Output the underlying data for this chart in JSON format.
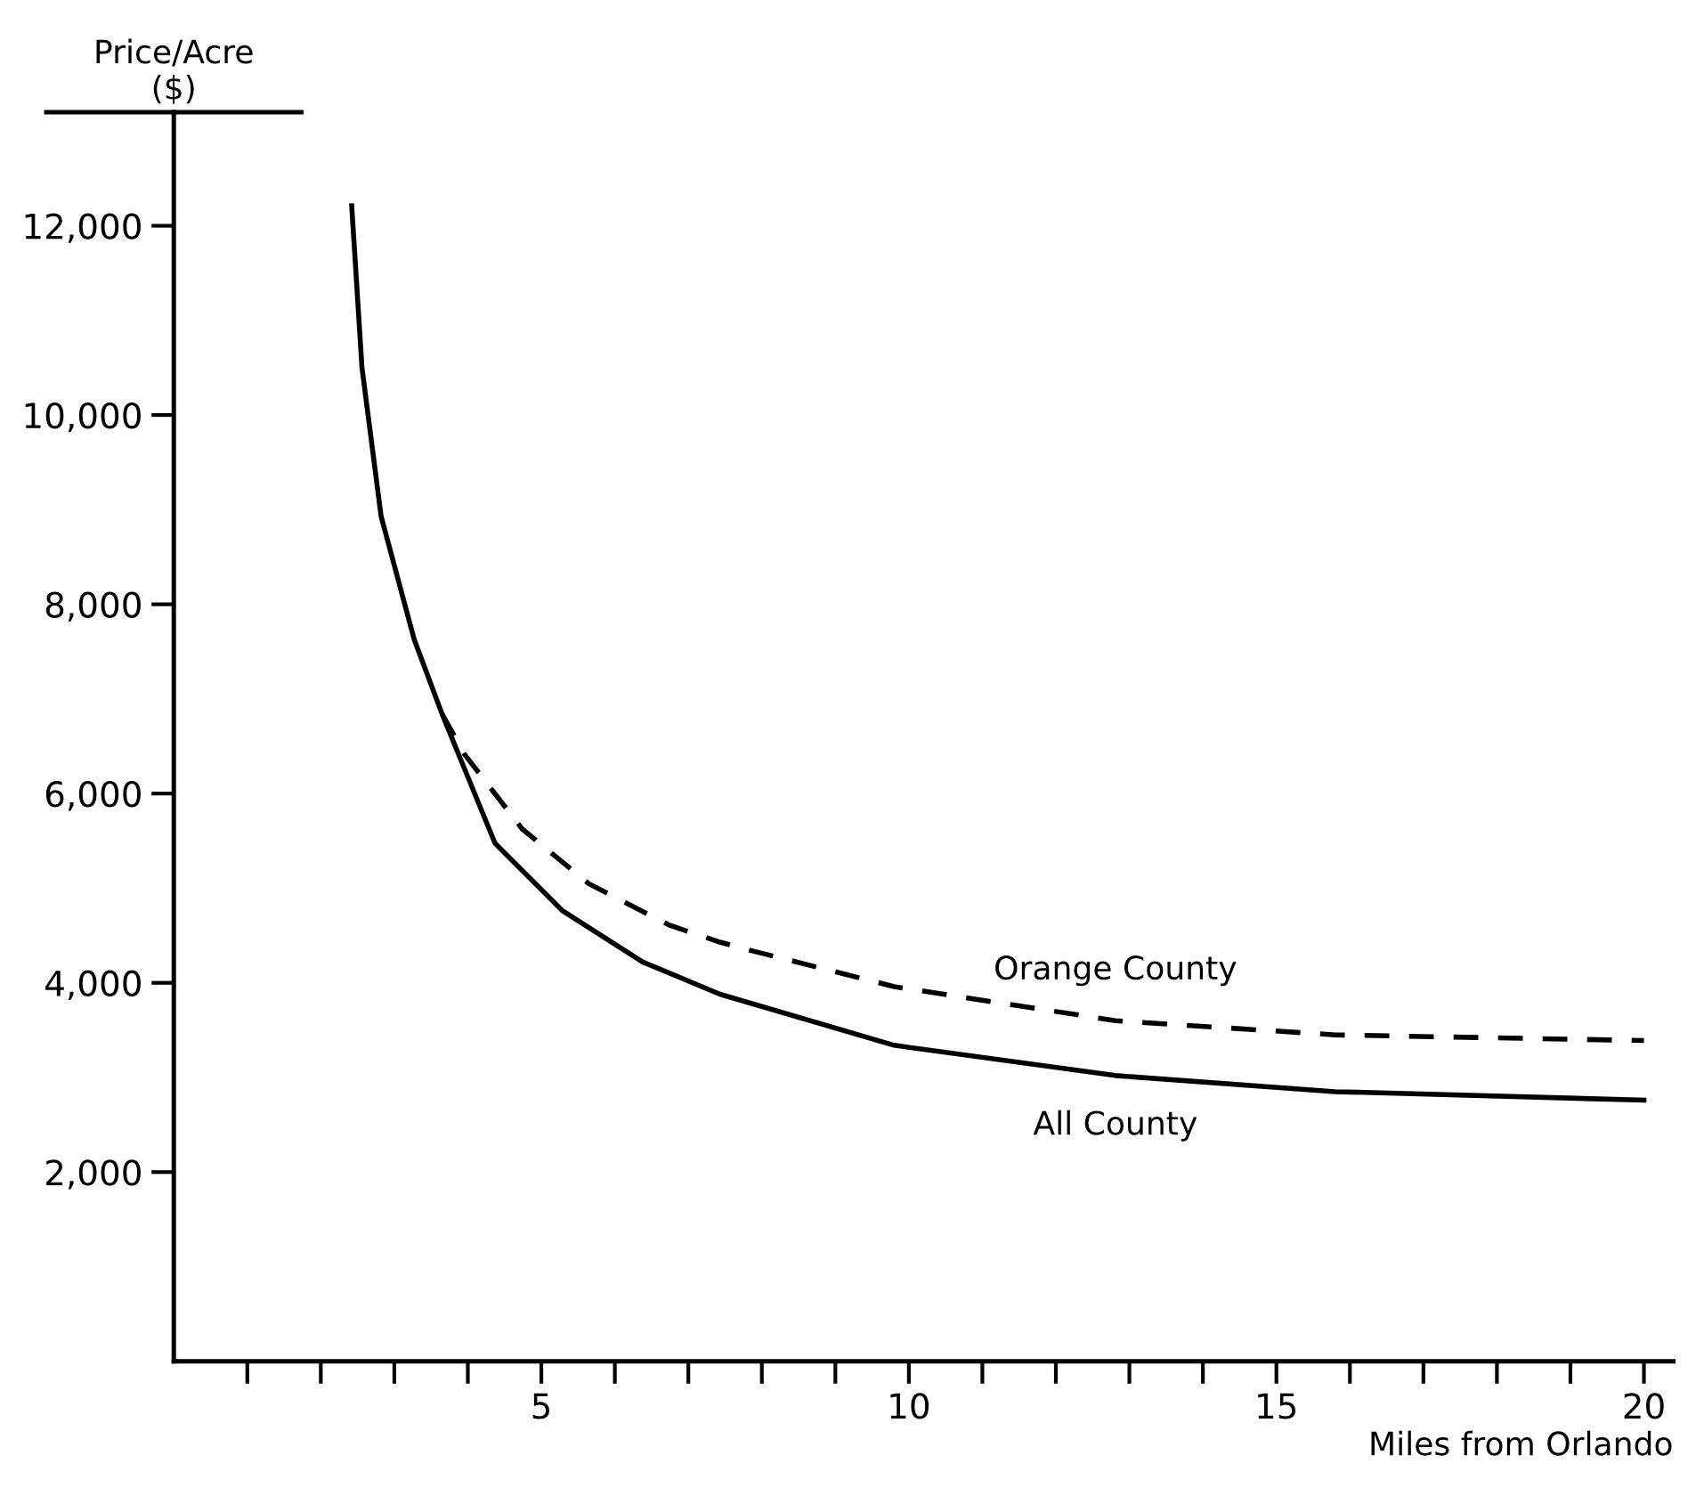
{
  "chart_data": {
    "type": "line",
    "xlabel": "Miles from Orlando",
    "ylabel": "Price/Acre\n($)",
    "xlim": [
      0,
      20.4
    ],
    "ylim": [
      0,
      13200
    ],
    "xticks": [
      {
        "value": 1,
        "label": null
      },
      {
        "value": 2,
        "label": null
      },
      {
        "value": 3,
        "label": null
      },
      {
        "value": 4,
        "label": null
      },
      5,
      {
        "value": 6,
        "label": null
      },
      {
        "value": 7,
        "label": null
      },
      {
        "value": 8,
        "label": null
      },
      {
        "value": 9,
        "label": null
      },
      10,
      {
        "value": 11,
        "label": null
      },
      {
        "value": 12,
        "label": null
      },
      {
        "value": 13,
        "label": null
      },
      {
        "value": 14,
        "label": null
      },
      15,
      {
        "value": 16,
        "label": null
      },
      {
        "value": 17,
        "label": null
      },
      {
        "value": 18,
        "label": null
      },
      {
        "value": 19,
        "label": null
      },
      20
    ],
    "yticks": [
      {
        "value": 2000,
        "label": "2,000"
      },
      {
        "value": 4000,
        "label": "4,000"
      },
      {
        "value": 6000,
        "label": "6,000"
      },
      {
        "value": 8000,
        "label": "8,000"
      },
      {
        "value": 10000,
        "label": "10,000"
      },
      {
        "value": 12000,
        "label": "12,000"
      }
    ],
    "grid": false,
    "legend": false,
    "marker": "none",
    "series": [
      {
        "name": "Orange County",
        "color": "#000000",
        "line_style": "dashed",
        "x": [
          3.65,
          3.96,
          4.74,
          5.65,
          6.74,
          7.43,
          7.81,
          9.8,
          12.81,
          15.8,
          20.0
        ],
        "values": [
          6840,
          6410,
          5625,
          5045,
          4610,
          4430,
          4350,
          3960,
          3600,
          3450,
          3390
        ]
      },
      {
        "name": "All County",
        "color": "#000000",
        "line_style": "solid",
        "x": [
          2.42,
          2.56,
          2.82,
          3.27,
          3.65,
          4.37,
          5.29,
          6.38,
          7.43,
          9.8,
          12.81,
          15.8,
          20.0
        ],
        "values": [
          12210,
          10500,
          8930,
          7630,
          6840,
          5475,
          4760,
          4220,
          3880,
          3340,
          3020,
          2850,
          2760
        ]
      }
    ]
  }
}
